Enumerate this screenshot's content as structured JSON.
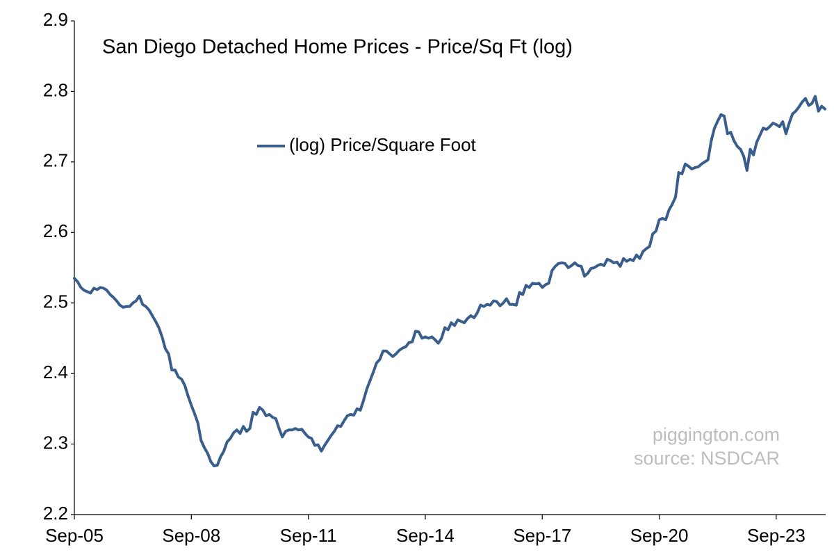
{
  "chart_data": {
    "type": "line",
    "title": "San Diego Detached Home Prices - Price/Sq Ft (log)",
    "annotations": [
      "piggington.com",
      "source: NSDCAR"
    ],
    "categories": [
      "Sep-05",
      null,
      null,
      null,
      null,
      null,
      null,
      null,
      null,
      null,
      null,
      null,
      null,
      null,
      null,
      null,
      null,
      null,
      null,
      null,
      null,
      null,
      null,
      null,
      null,
      null,
      null,
      null,
      null,
      null,
      null,
      null,
      null,
      null,
      null,
      null,
      "Sep-08",
      null,
      null,
      null,
      null,
      null,
      null,
      null,
      null,
      null,
      null,
      null,
      null,
      null,
      null,
      null,
      null,
      null,
      null,
      null,
      null,
      null,
      null,
      null,
      null,
      null,
      null,
      null,
      null,
      null,
      null,
      null,
      null,
      null,
      null,
      null,
      "Sep-11",
      null,
      null,
      null,
      null,
      null,
      null,
      null,
      null,
      null,
      null,
      null,
      null,
      null,
      null,
      null,
      null,
      null,
      null,
      null,
      null,
      null,
      null,
      null,
      null,
      null,
      null,
      null,
      null,
      null,
      null,
      null,
      null,
      null,
      null,
      null,
      "Sep-14",
      null,
      null,
      null,
      null,
      null,
      null,
      null,
      null,
      null,
      null,
      null,
      null,
      null,
      null,
      null,
      null,
      null,
      null,
      null,
      null,
      null,
      null,
      null,
      null,
      null,
      null,
      null,
      null,
      null,
      null,
      null,
      null,
      null,
      null,
      null,
      "Sep-17",
      null,
      null,
      null,
      null,
      null,
      null,
      null,
      null,
      null,
      null,
      null,
      null,
      null,
      null,
      null,
      null,
      null,
      null,
      null,
      null,
      null,
      null,
      null,
      null,
      null,
      null,
      null,
      null,
      null,
      null,
      null,
      null,
      null,
      null,
      null,
      "Sep-20",
      null,
      null,
      null,
      null,
      null,
      null,
      null,
      null,
      null,
      null,
      null,
      null,
      null,
      null,
      null,
      null,
      null,
      null,
      null,
      null,
      null,
      null,
      null,
      null,
      null,
      null,
      null,
      null,
      null,
      null,
      null,
      null,
      null,
      null,
      null,
      "Sep-23",
      null,
      null,
      null,
      null,
      null,
      null,
      null,
      null,
      null,
      null,
      null,
      null,
      null,
      null,
      null
    ],
    "series": [
      {
        "name": "(log) Price/Square Foot",
        "color": "#3a5e8c",
        "values": [
          2.535,
          2.53,
          2.522,
          2.518,
          2.516,
          2.514,
          2.521,
          2.519,
          2.522,
          2.521,
          2.518,
          2.512,
          2.508,
          2.503,
          2.497,
          2.494,
          2.495,
          2.495,
          2.5,
          2.503,
          2.51,
          2.498,
          2.495,
          2.49,
          2.482,
          2.474,
          2.465,
          2.452,
          2.435,
          2.428,
          2.405,
          2.405,
          2.395,
          2.392,
          2.383,
          2.368,
          2.355,
          2.343,
          2.33,
          2.305,
          2.295,
          2.287,
          2.275,
          2.269,
          2.27,
          2.282,
          2.29,
          2.303,
          2.308,
          2.316,
          2.32,
          2.315,
          2.325,
          2.318,
          2.322,
          2.345,
          2.342,
          2.352,
          2.348,
          2.34,
          2.342,
          2.338,
          2.336,
          2.322,
          2.31,
          2.318,
          2.32,
          2.32,
          2.322,
          2.32,
          2.321,
          2.315,
          2.31,
          2.308,
          2.298,
          2.299,
          2.29,
          2.298,
          2.305,
          2.312,
          2.318,
          2.326,
          2.325,
          2.333,
          2.34,
          2.342,
          2.341,
          2.35,
          2.348,
          2.362,
          2.378,
          2.39,
          2.402,
          2.415,
          2.42,
          2.432,
          2.432,
          2.428,
          2.424,
          2.428,
          2.433,
          2.436,
          2.438,
          2.444,
          2.445,
          2.46,
          2.459,
          2.45,
          2.452,
          2.45,
          2.452,
          2.448,
          2.443,
          2.45,
          2.465,
          2.462,
          2.472,
          2.468,
          2.476,
          2.474,
          2.472,
          2.478,
          2.482,
          2.479,
          2.486,
          2.497,
          2.495,
          2.498,
          2.497,
          2.503,
          2.502,
          2.496,
          2.5,
          2.506,
          2.498,
          2.498,
          2.497,
          2.515,
          2.512,
          2.525,
          2.522,
          2.528,
          2.527,
          2.528,
          2.522,
          2.526,
          2.528,
          2.546,
          2.552,
          2.556,
          2.557,
          2.556,
          2.55,
          2.553,
          2.557,
          2.553,
          2.552,
          2.538,
          2.542,
          2.549,
          2.55,
          2.553,
          2.555,
          2.553,
          2.562,
          2.56,
          2.557,
          2.558,
          2.552,
          2.563,
          2.559,
          2.562,
          2.56,
          2.568,
          2.563,
          2.573,
          2.577,
          2.58,
          2.598,
          2.602,
          2.618,
          2.62,
          2.618,
          2.632,
          2.64,
          2.65,
          2.685,
          2.683,
          2.697,
          2.694,
          2.69,
          2.692,
          2.693,
          2.697,
          2.7,
          2.703,
          2.73,
          2.748,
          2.758,
          2.767,
          2.765,
          2.74,
          2.742,
          2.73,
          2.722,
          2.718,
          2.708,
          2.688,
          2.718,
          2.71,
          2.728,
          2.738,
          2.748,
          2.746,
          2.75,
          2.755,
          2.753,
          2.75,
          2.757,
          2.74,
          2.755,
          2.768,
          2.772,
          2.778,
          2.785,
          2.79,
          2.78,
          2.783,
          2.793,
          2.772,
          2.779,
          2.775
        ]
      }
    ],
    "ylim": [
      2.2,
      2.9
    ],
    "yticks": [
      2.2,
      2.3,
      2.4,
      2.5,
      2.6,
      2.7,
      2.8,
      2.9
    ],
    "grid": false
  }
}
